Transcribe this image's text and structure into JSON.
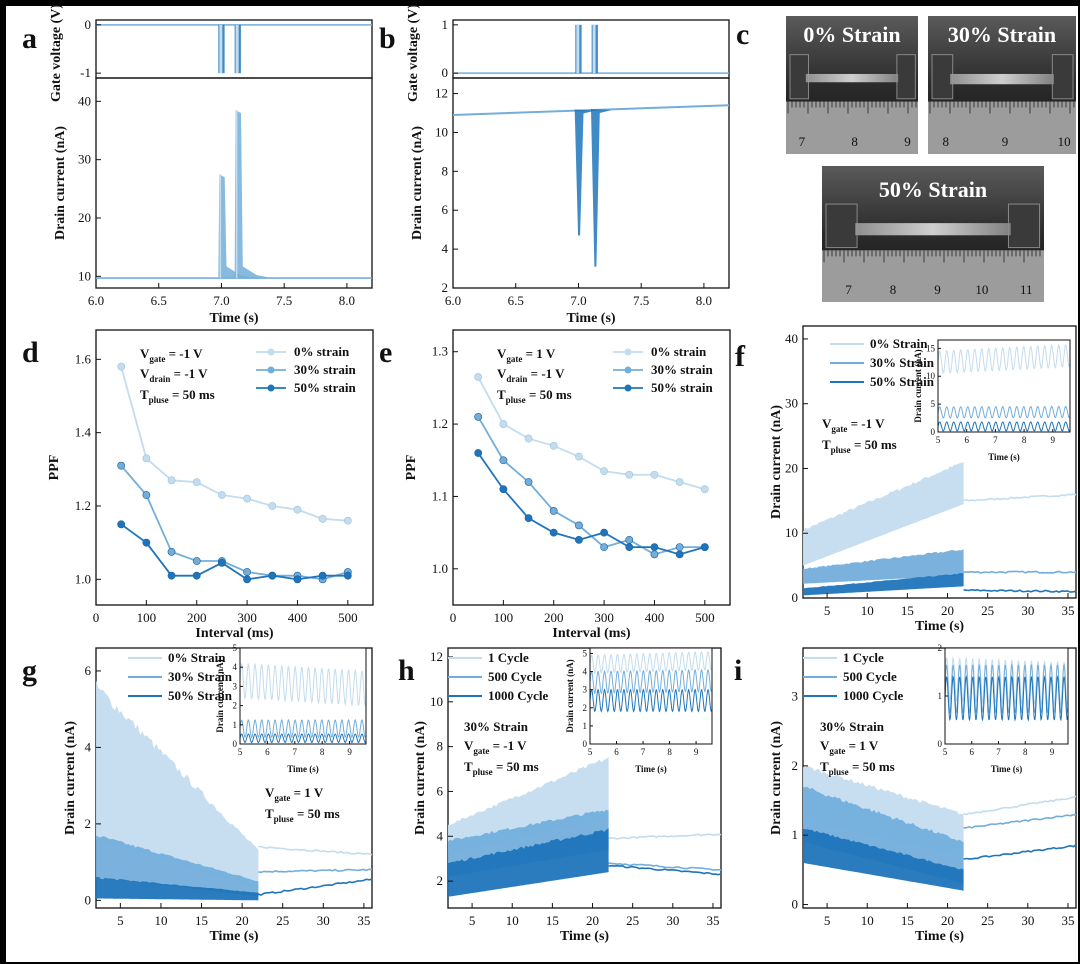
{
  "panel_letters": [
    "a",
    "b",
    "c",
    "d",
    "e",
    "f",
    "g",
    "h",
    "i"
  ],
  "colors": {
    "light": "#c3dcee",
    "mid": "#73aedb",
    "dark": "#1f75bb",
    "line": "#222222"
  },
  "photos": {
    "captions": [
      "0% Strain",
      "30% Strain",
      "50% Strain"
    ],
    "ruler_numbers": [
      [
        "7",
        "8",
        "9"
      ],
      [
        "8",
        "9",
        "10"
      ],
      [
        "7",
        "8",
        "9",
        "10",
        "11"
      ]
    ]
  },
  "chart_data": [
    {
      "id": "a",
      "type": "line",
      "xlabel": "Time (s)",
      "xlim": [
        6.0,
        8.2
      ],
      "xticks": [
        "6.0",
        "6.5",
        "7.0",
        "7.5",
        "8.0"
      ],
      "top": {
        "ylabel": "Gate voltage (V)",
        "ylim": [
          -1.1,
          0.1
        ],
        "yticks": [
          "0",
          "-1"
        ],
        "pulses": [
          {
            "t": 7.0,
            "w": 0.05,
            "v": -1
          },
          {
            "t": 7.13,
            "w": 0.05,
            "v": -1
          }
        ],
        "baseline": 0
      },
      "bottom": {
        "ylabel": "Drain current (nA)",
        "ylim": [
          8,
          44
        ],
        "yticks": [
          "10",
          "20",
          "30",
          "40"
        ],
        "baseline": 9.7,
        "peaks": [
          {
            "t": 7.0,
            "v": 27.5
          },
          {
            "t": 7.13,
            "v": 38.5
          }
        ]
      }
    },
    {
      "id": "b",
      "type": "line",
      "xlabel": "Time (s)",
      "xlim": [
        6.0,
        8.2
      ],
      "xticks": [
        "6.0",
        "6.5",
        "7.0",
        "7.5",
        "8.0"
      ],
      "top": {
        "ylabel": "Gate voltage (V)",
        "ylim": [
          -0.1,
          1.1
        ],
        "yticks": [
          "1",
          "0"
        ],
        "pulses": [
          {
            "t": 7.0,
            "w": 0.05,
            "v": 1
          },
          {
            "t": 7.13,
            "w": 0.05,
            "v": 1
          }
        ],
        "baseline": 0
      },
      "bottom": {
        "ylabel": "Drain current (nA)",
        "ylim": [
          2,
          12.8
        ],
        "yticks": [
          "2",
          "4",
          "6",
          "8",
          "10",
          "12"
        ],
        "baseline_start": 10.95,
        "baseline_end": 11.45,
        "dips": [
          {
            "t": 7.0,
            "v": 4.7
          },
          {
            "t": 7.13,
            "v": 3.1
          }
        ]
      }
    },
    {
      "id": "d",
      "type": "line",
      "xlabel": "Interval (ms)",
      "ylabel": "PPF",
      "xlim": [
        0,
        550
      ],
      "ylim": [
        0.93,
        1.68
      ],
      "xticks": [
        "0",
        "100",
        "200",
        "300",
        "400",
        "500"
      ],
      "yticks": [
        "1.0",
        "1.2",
        "1.4",
        "1.6"
      ],
      "x": [
        50,
        100,
        150,
        200,
        250,
        300,
        350,
        400,
        450,
        500
      ],
      "series": [
        {
          "name": "0% strain",
          "values": [
            1.58,
            1.33,
            1.27,
            1.265,
            1.23,
            1.22,
            1.2,
            1.19,
            1.165,
            1.16
          ]
        },
        {
          "name": "30% strain",
          "values": [
            1.31,
            1.23,
            1.075,
            1.05,
            1.05,
            1.02,
            1.01,
            1.01,
            1.0,
            1.02
          ]
        },
        {
          "name": "50% strain",
          "values": [
            1.15,
            1.1,
            1.01,
            1.01,
            1.045,
            1.0,
            1.01,
            1.0,
            1.01,
            1.01
          ]
        }
      ],
      "annotation": [
        "V",
        "gate",
        " = -1 V",
        "V",
        "drain",
        " = -1 V",
        "T",
        "pluse",
        " = 50 ms"
      ]
    },
    {
      "id": "e",
      "type": "line",
      "xlabel": "Interval (ms)",
      "ylabel": "PPF",
      "xlim": [
        0,
        550
      ],
      "ylim": [
        0.95,
        1.33
      ],
      "xticks": [
        "0",
        "100",
        "200",
        "300",
        "400",
        "500"
      ],
      "yticks": [
        "1.0",
        "1.1",
        "1.2",
        "1.3"
      ],
      "x": [
        50,
        100,
        150,
        200,
        250,
        300,
        350,
        400,
        450,
        500
      ],
      "series": [
        {
          "name": "0% strain",
          "values": [
            1.265,
            1.2,
            1.18,
            1.17,
            1.155,
            1.135,
            1.13,
            1.13,
            1.12,
            1.11
          ]
        },
        {
          "name": "30% strain",
          "values": [
            1.21,
            1.15,
            1.12,
            1.08,
            1.06,
            1.03,
            1.04,
            1.02,
            1.03,
            1.03
          ]
        },
        {
          "name": "50% strain",
          "values": [
            1.16,
            1.11,
            1.07,
            1.05,
            1.04,
            1.05,
            1.03,
            1.03,
            1.02,
            1.03
          ]
        }
      ],
      "annotation": [
        "V",
        "gate",
        " = 1 V",
        "V",
        "drain",
        " = -1 V",
        "T",
        "pluse",
        " = 50 ms"
      ]
    },
    {
      "id": "f",
      "type": "area",
      "xlabel": "Time (s)",
      "ylabel": "Drain current (nA)",
      "xlim": [
        2,
        36
      ],
      "ylim": [
        0,
        42
      ],
      "xticks": [
        "5",
        "10",
        "15",
        "20",
        "25",
        "30",
        "35"
      ],
      "yticks": [
        "0",
        "10",
        "20",
        "30",
        "40"
      ],
      "series": [
        {
          "name": "0% Strain",
          "band_start": [
            5,
            10.5
          ],
          "band_end": [
            14.5,
            21
          ],
          "tail": [
            15,
            16
          ]
        },
        {
          "name": "30% Strain",
          "band_start": [
            2.2,
            4.5
          ],
          "band_end": [
            3.5,
            7.5
          ],
          "tail": [
            4,
            4
          ]
        },
        {
          "name": "50% Strain",
          "band_start": [
            0.4,
            1.5
          ],
          "band_end": [
            1.8,
            3.8
          ],
          "tail": [
            1.2,
            1
          ]
        }
      ],
      "annotation": [
        "V",
        "gate",
        " = -1 V",
        "T",
        "pluse",
        " = 50 ms"
      ],
      "inset": {
        "xlim": [
          5,
          9.6
        ],
        "ylim": [
          0,
          16.5
        ],
        "xticks": [
          "5",
          "6",
          "7",
          "8",
          "9"
        ],
        "yticks": [
          "0",
          "5",
          "10",
          "15"
        ],
        "ylabel": "Drain current (nA)",
        "xlabel": "Time (s)",
        "waves": [
          {
            "mean": 12.5,
            "amp": 2.0,
            "drift": 1.2
          },
          {
            "mean": 3.5,
            "amp": 1.0,
            "drift": 0.1
          },
          {
            "mean": 1.0,
            "amp": 0.8,
            "drift": 0
          }
        ]
      }
    },
    {
      "id": "g",
      "type": "area",
      "xlabel": "Time (s)",
      "ylabel": "Drain current (nA)",
      "xlim": [
        2,
        36
      ],
      "ylim": [
        -0.2,
        6.6
      ],
      "xticks": [
        "5",
        "10",
        "15",
        "20",
        "25",
        "30",
        "35"
      ],
      "yticks": [
        "0",
        "2",
        "4",
        "6"
      ],
      "series": [
        {
          "name": "0% Strain",
          "band_start": [
            1.6,
            5.6
          ],
          "band_end": [
            0.3,
            1.3
          ],
          "tail": [
            1.4,
            1.2
          ]
        },
        {
          "name": "30% Strain",
          "band_start": [
            0.6,
            1.7
          ],
          "band_end": [
            0.1,
            0.5
          ],
          "tail": [
            0.75,
            0.8
          ]
        },
        {
          "name": "50% Strain",
          "band_start": [
            0.05,
            0.6
          ],
          "band_end": [
            0.0,
            0.2
          ],
          "tail": [
            0.15,
            0.55
          ]
        }
      ],
      "annotation": [
        "V",
        "gate",
        " = 1 V",
        "T",
        "pluse",
        " = 50 ms"
      ],
      "inset": {
        "xlim": [
          5,
          9.6
        ],
        "ylim": [
          0,
          5
        ],
        "xticks": [
          "5",
          "6",
          "7",
          "8",
          "9"
        ],
        "yticks": [
          "0",
          "1",
          "2",
          "3",
          "4",
          "5"
        ],
        "ylabel": "Drain current (nA)",
        "xlabel": "Time (s)",
        "waves": [
          {
            "mean": 3.3,
            "amp": 0.9,
            "drift": -0.4
          },
          {
            "mean": 0.8,
            "amp": 0.45,
            "drift": 0
          },
          {
            "mean": 0.3,
            "amp": 0.22,
            "drift": 0
          }
        ]
      }
    },
    {
      "id": "h",
      "type": "area",
      "xlabel": "Time (s)",
      "ylabel": "Drain current (nA)",
      "xlim": [
        2,
        36
      ],
      "ylim": [
        0.8,
        12.4
      ],
      "xticks": [
        "5",
        "10",
        "15",
        "20",
        "25",
        "30",
        "35"
      ],
      "yticks": [
        "2",
        "4",
        "6",
        "8",
        "10",
        "12"
      ],
      "series": [
        {
          "name": "1 Cycle",
          "band_start": [
            3.2,
            4.5
          ],
          "band_end": [
            4.8,
            7.5
          ],
          "tail": [
            3.9,
            4.1
          ]
        },
        {
          "name": "500 Cycle",
          "band_start": [
            2.2,
            3.8
          ],
          "band_end": [
            3.4,
            5.2
          ],
          "tail": [
            2.8,
            2.5
          ]
        },
        {
          "name": "1000 Cycle",
          "band_start": [
            1.3,
            2.8
          ],
          "band_end": [
            2.4,
            4.3
          ],
          "tail": [
            2.7,
            2.3
          ]
        }
      ],
      "annotation": [
        "30% Strain",
        "V",
        "gate",
        " = -1 V",
        "T",
        "pluse",
        " = 50 ms"
      ],
      "inset": {
        "xlim": [
          5,
          9.6
        ],
        "ylim": [
          0,
          5.3
        ],
        "xticks": [
          "5",
          "6",
          "7",
          "8",
          "9"
        ],
        "yticks": [
          "0",
          "1",
          "2",
          "3",
          "4",
          "5"
        ],
        "ylabel": "Drain current (nA)",
        "xlabel": "Time (s)",
        "waves": [
          {
            "mean": 4.4,
            "amp": 0.5,
            "drift": 0.2
          },
          {
            "mean": 3.4,
            "amp": 0.6,
            "drift": 0.1
          },
          {
            "mean": 2.4,
            "amp": 0.6,
            "drift": 0
          }
        ]
      }
    },
    {
      "id": "i",
      "type": "area",
      "xlabel": "Time (s)",
      "ylabel": "Drain current (nA)",
      "xlim": [
        2,
        36
      ],
      "ylim": [
        -0.05,
        3.7
      ],
      "xticks": [
        "5",
        "10",
        "15",
        "20",
        "25",
        "30",
        "35"
      ],
      "yticks": [
        "0",
        "1",
        "2",
        "3"
      ],
      "series": [
        {
          "name": "1 Cycle",
          "band_start": [
            1.2,
            2.0
          ],
          "band_end": [
            0.7,
            1.3
          ],
          "tail": [
            1.3,
            1.55
          ]
        },
        {
          "name": "500 Cycle",
          "band_start": [
            0.9,
            1.7
          ],
          "band_end": [
            0.3,
            0.9
          ],
          "tail": [
            1.1,
            1.3
          ]
        },
        {
          "name": "1000 Cycle",
          "band_start": [
            0.6,
            1.1
          ],
          "band_end": [
            0.2,
            0.5
          ],
          "tail": [
            0.65,
            0.85
          ]
        }
      ],
      "annotation": [
        "30% Strain",
        "V",
        "gate",
        " = 1 V",
        "T",
        "pluse",
        " = 50 ms"
      ],
      "inset": {
        "xlim": [
          5,
          9.6
        ],
        "ylim": [
          0,
          2
        ],
        "xticks": [
          "5",
          "6",
          "7",
          "8",
          "9"
        ],
        "yticks": [
          "0",
          "1",
          "2"
        ],
        "ylabel": "",
        "xlabel": "Time (s)",
        "waves": [
          {
            "mean": 1.35,
            "amp": 0.45,
            "drift": -0.1
          },
          {
            "mean": 1.15,
            "amp": 0.5,
            "drift": 0
          },
          {
            "mean": 0.95,
            "amp": 0.45,
            "drift": 0
          }
        ]
      }
    }
  ]
}
